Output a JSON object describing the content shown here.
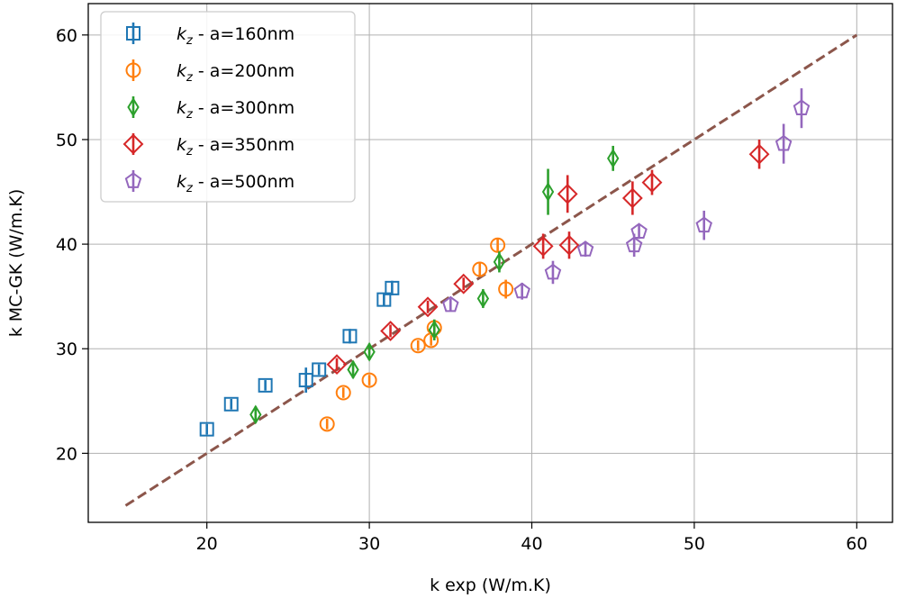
{
  "chart_data": {
    "type": "scatter",
    "xlabel": "k exp (W/m.K)",
    "ylabel": "k MC-GK (W/m.K)",
    "xlim": [
      12.7,
      62.2
    ],
    "ylim": [
      13.4,
      63.0
    ],
    "xticks": [
      "20",
      "30",
      "40",
      "50",
      "60"
    ],
    "yticks": [
      "20",
      "30",
      "40",
      "50",
      "60"
    ],
    "grid": true,
    "legend_position": "top-left",
    "reference_line": {
      "from": [
        15,
        15
      ],
      "to": [
        60,
        60
      ],
      "style": "dashed",
      "color": "#8c564b"
    },
    "series": [
      {
        "name_main": "k",
        "name_sub": "z",
        "name_rest": " - a=160nm",
        "marker": "square",
        "color": "#1f77b4",
        "points": [
          {
            "x": 20.0,
            "y": 22.3,
            "err": 0.5
          },
          {
            "x": 21.5,
            "y": 24.7,
            "err": 0.5
          },
          {
            "x": 23.6,
            "y": 26.5,
            "err": 0.5
          },
          {
            "x": 26.1,
            "y": 27.0,
            "err": 1.2
          },
          {
            "x": 26.9,
            "y": 28.0,
            "err": 0.5
          },
          {
            "x": 28.8,
            "y": 31.2,
            "err": 0.7
          },
          {
            "x": 30.9,
            "y": 34.7,
            "err": 0.6
          },
          {
            "x": 31.4,
            "y": 35.8,
            "err": 0.7
          }
        ]
      },
      {
        "name_main": "k",
        "name_sub": "z",
        "name_rest": " - a=200nm",
        "marker": "circle",
        "color": "#ff7f0e",
        "points": [
          {
            "x": 27.4,
            "y": 22.8,
            "err": 0.5
          },
          {
            "x": 28.4,
            "y": 25.8,
            "err": 0.5
          },
          {
            "x": 30.0,
            "y": 27.0,
            "err": 0.5
          },
          {
            "x": 33.0,
            "y": 30.3,
            "err": 0.5
          },
          {
            "x": 33.8,
            "y": 30.8,
            "err": 0.5
          },
          {
            "x": 34.0,
            "y": 32.0,
            "err": 0.5
          },
          {
            "x": 36.8,
            "y": 37.6,
            "err": 0.7
          },
          {
            "x": 38.4,
            "y": 35.7,
            "err": 0.9
          },
          {
            "x": 37.9,
            "y": 39.9,
            "err": 0.7
          }
        ]
      },
      {
        "name_main": "k",
        "name_sub": "z",
        "name_rest": " - a=300nm",
        "marker": "thin_diamond",
        "color": "#2ca02c",
        "points": [
          {
            "x": 23.0,
            "y": 23.7,
            "err": 0.8
          },
          {
            "x": 29.0,
            "y": 28.0,
            "err": 0.8
          },
          {
            "x": 30.0,
            "y": 29.7,
            "err": 0.8
          },
          {
            "x": 34.0,
            "y": 31.8,
            "err": 1.0
          },
          {
            "x": 37.0,
            "y": 34.8,
            "err": 0.9
          },
          {
            "x": 38.0,
            "y": 38.3,
            "err": 1.0
          },
          {
            "x": 41.0,
            "y": 45.0,
            "err": 2.2
          },
          {
            "x": 45.0,
            "y": 48.2,
            "err": 1.2
          }
        ]
      },
      {
        "name_main": "k",
        "name_sub": "z",
        "name_rest": " - a=350nm",
        "marker": "diamond",
        "color": "#d62728",
        "points": [
          {
            "x": 28.0,
            "y": 28.5,
            "err": 0.6
          },
          {
            "x": 31.3,
            "y": 31.7,
            "err": 0.6
          },
          {
            "x": 33.6,
            "y": 34.0,
            "err": 0.6
          },
          {
            "x": 35.8,
            "y": 36.2,
            "err": 0.6
          },
          {
            "x": 40.7,
            "y": 39.8,
            "err": 1.2
          },
          {
            "x": 42.3,
            "y": 39.9,
            "err": 1.3
          },
          {
            "x": 42.2,
            "y": 44.8,
            "err": 1.8
          },
          {
            "x": 46.2,
            "y": 44.4,
            "err": 1.6
          },
          {
            "x": 47.4,
            "y": 45.9,
            "err": 1.2
          },
          {
            "x": 54.0,
            "y": 48.6,
            "err": 1.4
          }
        ]
      },
      {
        "name_main": "k",
        "name_sub": "z",
        "name_rest": " - a=500nm",
        "marker": "pentagon",
        "color": "#9467bd",
        "points": [
          {
            "x": 35.0,
            "y": 34.2,
            "err": 0.6
          },
          {
            "x": 39.4,
            "y": 35.5,
            "err": 0.8
          },
          {
            "x": 41.3,
            "y": 37.3,
            "err": 1.1
          },
          {
            "x": 43.3,
            "y": 39.5,
            "err": 0.7
          },
          {
            "x": 46.3,
            "y": 39.9,
            "err": 1.1
          },
          {
            "x": 46.6,
            "y": 41.2,
            "err": 0.7
          },
          {
            "x": 50.6,
            "y": 41.8,
            "err": 1.4
          },
          {
            "x": 55.5,
            "y": 49.6,
            "err": 1.9
          },
          {
            "x": 56.6,
            "y": 53.0,
            "err": 1.9
          }
        ]
      }
    ]
  }
}
